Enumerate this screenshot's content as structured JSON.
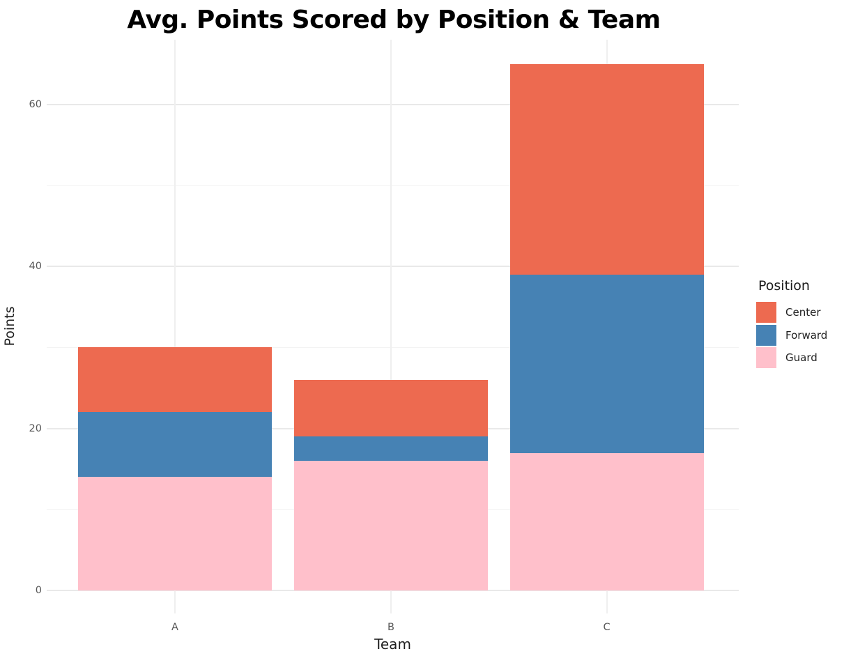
{
  "chart_data": {
    "type": "bar",
    "stacked": true,
    "title": "Avg. Points Scored by Position & Team",
    "xlabel": "Team",
    "ylabel": "Points",
    "categories": [
      "A",
      "B",
      "C"
    ],
    "series": [
      {
        "name": "Guard",
        "color": "#FFC0CB",
        "values": [
          14,
          16,
          17
        ]
      },
      {
        "name": "Forward",
        "color": "#4682B4",
        "values": [
          8,
          3,
          22
        ]
      },
      {
        "name": "Center",
        "color": "#ED6A50",
        "values": [
          8,
          7,
          26
        ]
      }
    ],
    "totals": [
      30,
      26,
      65
    ],
    "ylim": [
      0,
      68
    ],
    "y_ticks": [
      0,
      20,
      40,
      60
    ],
    "y_minor_ticks": [
      10,
      30,
      50
    ],
    "grid": "light horizontal major+minor lines, vertical line at each category",
    "legend_position": "right",
    "legend": {
      "title": "Position",
      "entries": [
        {
          "label": "Center",
          "color": "#ED6A50"
        },
        {
          "label": "Forward",
          "color": "#4682B4"
        },
        {
          "label": "Guard",
          "color": "#FFC0CB"
        }
      ]
    }
  },
  "colors": {
    "background": "#FFFFFF",
    "grid_major": "#E9E9E9",
    "grid_minor": "#F3F3F3",
    "tick_label": "#575757",
    "axis_title": "#1F1F1F",
    "title": "#000000"
  }
}
